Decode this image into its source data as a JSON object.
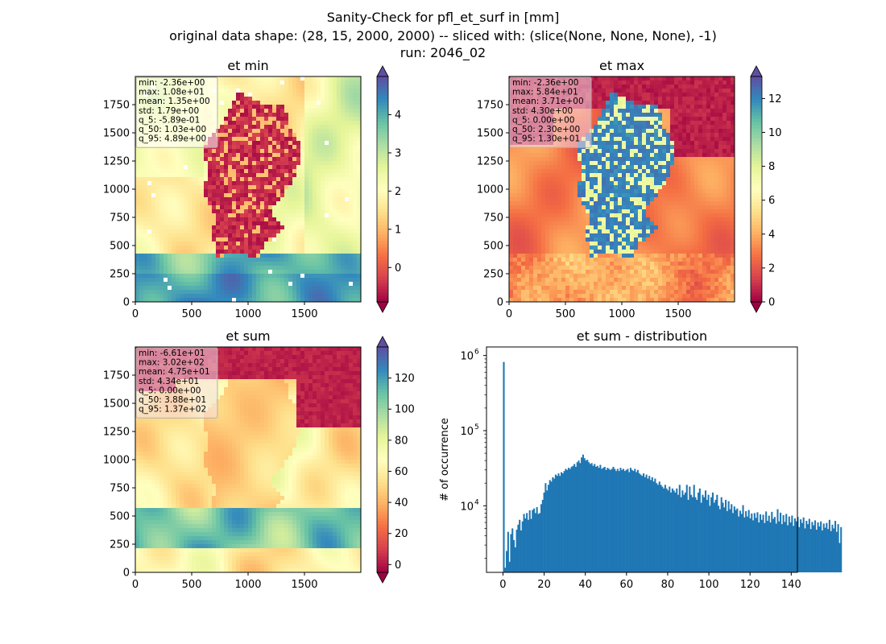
{
  "figure": {
    "title_lines": [
      "Sanity-Check for pfl_et_surf in [mm]",
      "original data shape: (28, 15, 2000, 2000) -- sliced with: (slice(None, None, None), -1)",
      "run: 2046_02"
    ]
  },
  "chart_data": [
    {
      "type": "heatmap",
      "title": "et min",
      "xlim": [
        0,
        2000
      ],
      "ylim": [
        0,
        2000
      ],
      "x_ticks": [
        "0",
        "500",
        "1000",
        "1500"
      ],
      "y_ticks": [
        "0",
        "250",
        "500",
        "750",
        "1000",
        "1250",
        "1500",
        "1750"
      ],
      "colormap": "Spectral",
      "colorbar": {
        "vmin": -0.9,
        "vmax": 5.0,
        "ticks": [
          0,
          1,
          2,
          3,
          4
        ],
        "extend": "both"
      },
      "stats": [
        "min: -2.36e+00",
        "max: 1.08e+01",
        "mean: 1.35e+00",
        "std: 1.79e+00",
        "q_5: -5.89e-01",
        "q_50: 1.03e+00",
        "q_95: 4.89e+00"
      ]
    },
    {
      "type": "heatmap",
      "title": "et max",
      "xlim": [
        0,
        2000
      ],
      "ylim": [
        0,
        2000
      ],
      "x_ticks": [
        "0",
        "500",
        "1000",
        "1500"
      ],
      "y_ticks": [
        "0",
        "250",
        "500",
        "750",
        "1000",
        "1250",
        "1500",
        "1750"
      ],
      "colormap": "Spectral",
      "colorbar": {
        "vmin": 0,
        "vmax": 13.3,
        "ticks": [
          0,
          2,
          4,
          6,
          8,
          10,
          12
        ],
        "extend": "both"
      },
      "stats": [
        "min: -2.36e+00",
        "max: 5.84e+01",
        "mean: 3.71e+00",
        "std: 4.30e+00",
        "q_5: 0.00e+00",
        "q_50: 2.30e+00",
        "q_95: 1.30e+01"
      ]
    },
    {
      "type": "heatmap",
      "title": "et sum",
      "xlim": [
        0,
        2000
      ],
      "ylim": [
        0,
        2000
      ],
      "x_ticks": [
        "0",
        "500",
        "1000",
        "1500"
      ],
      "y_ticks": [
        "0",
        "250",
        "500",
        "750",
        "1000",
        "1250",
        "1500",
        "1750"
      ],
      "colormap": "Spectral",
      "colorbar": {
        "vmin": -5,
        "vmax": 140,
        "ticks": [
          0,
          20,
          40,
          60,
          80,
          100,
          120
        ],
        "extend": "both"
      },
      "stats": [
        "min: -6.61e+01",
        "max: 3.02e+02",
        "mean: 4.75e+01",
        "std: 4.34e+01",
        "q_5: 0.00e+00",
        "q_50: 3.88e+01",
        "q_95: 1.37e+02"
      ]
    },
    {
      "type": "bar",
      "title": "et sum - distribution",
      "xlabel": "",
      "ylabel": "# of occurrence",
      "yscale": "log",
      "xlim": [
        -8,
        143
      ],
      "ylim": [
        1300,
        1300000
      ],
      "x_ticks": [
        0,
        20,
        40,
        60,
        80,
        100,
        120,
        140
      ],
      "y_ticks": [
        {
          "value": 10000,
          "label": "10^4"
        },
        {
          "value": 100000,
          "label": "10^5"
        },
        {
          "value": 1000000,
          "label": "10^6"
        }
      ],
      "color": "#1f77b4",
      "bins": {
        "start": 0,
        "width": 0.7,
        "counts": [
          820000,
          1500,
          2500,
          4500,
          1800,
          4200,
          5000,
          3500,
          2800,
          4800,
          5600,
          6500,
          4700,
          6200,
          7800,
          6800,
          8000,
          6500,
          8700,
          6700,
          8800,
          9200,
          8000,
          9600,
          7800,
          8000,
          10500,
          12000,
          15000,
          20000,
          16000,
          19000,
          22000,
          21000,
          24000,
          23000,
          26000,
          25000,
          27000,
          25000,
          28000,
          27000,
          29000,
          31000,
          30000,
          32000,
          31000,
          33000,
          34000,
          36000,
          33000,
          38000,
          40000,
          37000,
          44000,
          48000,
          43000,
          40000,
          41000,
          38000,
          36000,
          37000,
          34000,
          36000,
          33000,
          34000,
          32000,
          35000,
          31000,
          32000,
          33000,
          30000,
          32000,
          31000,
          30000,
          31000,
          33000,
          31000,
          29000,
          31000,
          29000,
          32000,
          30000,
          31000,
          29000,
          30000,
          31000,
          28000,
          32000,
          30000,
          29000,
          31000,
          28000,
          30000,
          27000,
          26000,
          25000,
          27000,
          24000,
          26000,
          23000,
          25000,
          22000,
          24000,
          21000,
          23000,
          20000,
          19000,
          21000,
          19000,
          18000,
          17000,
          19000,
          17000,
          16000,
          18000,
          15000,
          17000,
          16000,
          15000,
          17000,
          14000,
          19000,
          13000,
          16000,
          14000,
          15000,
          19000,
          12000,
          18000,
          14000,
          13000,
          19000,
          13000,
          12000,
          15000,
          17000,
          11000,
          14000,
          13000,
          16000,
          12000,
          14000,
          10000,
          13000,
          15000,
          11000,
          12000,
          14000,
          10000,
          9000,
          13000,
          11000,
          9500,
          12000,
          8500,
          11500,
          9000,
          10500,
          8000,
          9800,
          8800,
          9200,
          7200,
          8600,
          7800,
          10200,
          7000,
          8500,
          7200,
          8800,
          6800,
          7900,
          6400,
          8000,
          6900,
          8200,
          6000,
          7700,
          6500,
          7600,
          5900,
          8400,
          6300,
          7400,
          6000,
          8300,
          6700,
          7100,
          5800,
          9000,
          6200,
          8100,
          5700,
          7500,
          6100,
          7800,
          5500,
          7200,
          6000,
          7400,
          5400,
          6800,
          6200,
          7100,
          5200,
          6600,
          5900,
          7000,
          5000,
          6300,
          5700,
          6700,
          4900,
          6100,
          5500,
          6400,
          4800,
          6000,
          5300,
          6200,
          4700,
          5800,
          5100,
          5900,
          4900,
          6500,
          4600,
          5600,
          5000,
          6300,
          4500,
          5700,
          3200,
          5200
        ]
      }
    }
  ]
}
